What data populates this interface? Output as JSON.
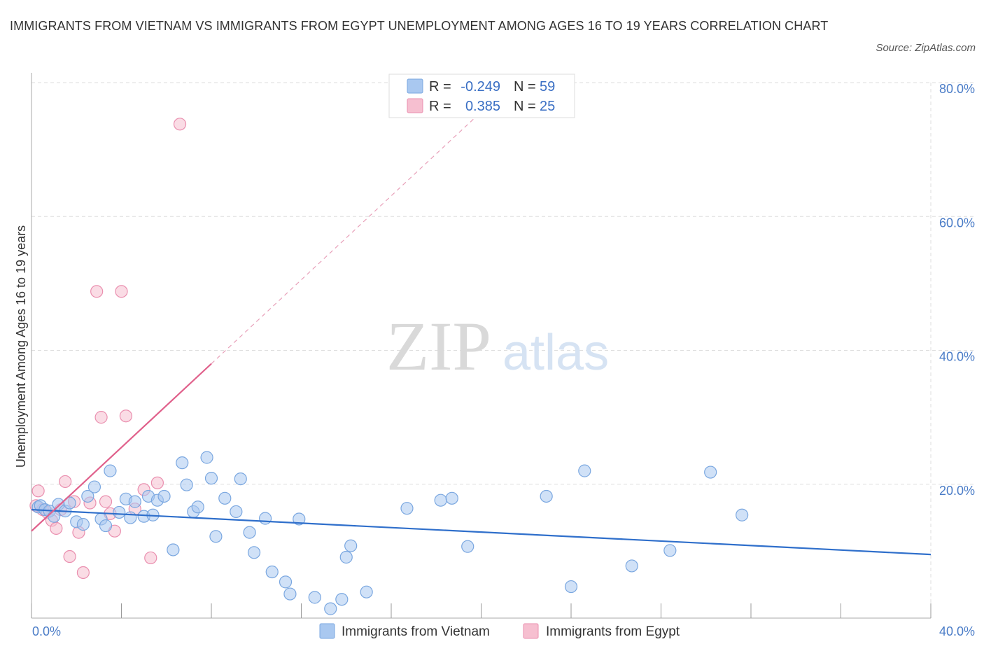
{
  "title": "IMMIGRANTS FROM VIETNAM VS IMMIGRANTS FROM EGYPT UNEMPLOYMENT AMONG AGES 16 TO 19 YEARS CORRELATION CHART",
  "source": "Source: ZipAtlas.com",
  "watermark": {
    "zip": "ZIP",
    "atlas": "atlas"
  },
  "colors": {
    "vietnam_fill": "#a9c8f0",
    "vietnam_stroke": "#7aa7e0",
    "vietnam_line": "#2f6fcb",
    "egypt_fill": "#f6bfd0",
    "egypt_stroke": "#ea8faf",
    "egypt_line": "#e0608b",
    "tick_label": "#4a7cc7",
    "grid": "#dddddd"
  },
  "legend": {
    "rows": [
      {
        "r_label": "R =",
        "r_value": "-0.249",
        "n_label": "N =",
        "n_value": "59"
      },
      {
        "r_label": "R =",
        "r_value": "0.385",
        "n_label": "N =",
        "n_value": "25"
      }
    ]
  },
  "chart_data": {
    "type": "scatter",
    "title": "IMMIGRANTS FROM VIETNAM VS IMMIGRANTS FROM EGYPT UNEMPLOYMENT AMONG AGES 16 TO 19 YEARS CORRELATION CHART",
    "xlabel": "",
    "ylabel": "Unemployment Among Ages 16 to 19 years",
    "xlim": [
      0,
      40
    ],
    "ylim": [
      0,
      80
    ],
    "x_tick_labels": [
      "0.0%",
      "40.0%"
    ],
    "y_ticks": [
      20,
      40,
      60,
      80
    ],
    "y_tick_labels": [
      "20.0%",
      "40.0%",
      "60.0%",
      "80.0%"
    ],
    "grid": true,
    "legend_position": "bottom-center",
    "series": [
      {
        "name": "Immigrants from Vietnam",
        "r": -0.249,
        "n": 59,
        "trend": {
          "x0": 0,
          "y0": 16.2,
          "x1": 40,
          "y1": 9.5,
          "dashed_to": null
        },
        "points": [
          [
            0.3,
            16.6
          ],
          [
            0.4,
            16.8
          ],
          [
            0.6,
            16.2
          ],
          [
            0.8,
            16.0
          ],
          [
            1.0,
            15.2
          ],
          [
            1.2,
            17.0
          ],
          [
            1.5,
            16.0
          ],
          [
            1.7,
            17.2
          ],
          [
            2.0,
            14.4
          ],
          [
            2.3,
            14.0
          ],
          [
            2.5,
            18.2
          ],
          [
            2.8,
            19.6
          ],
          [
            3.1,
            14.8
          ],
          [
            3.3,
            13.8
          ],
          [
            3.5,
            22.0
          ],
          [
            3.9,
            15.8
          ],
          [
            4.2,
            17.8
          ],
          [
            4.4,
            15.0
          ],
          [
            4.6,
            17.4
          ],
          [
            5.0,
            15.2
          ],
          [
            5.2,
            18.2
          ],
          [
            5.4,
            15.4
          ],
          [
            5.6,
            17.6
          ],
          [
            5.9,
            18.2
          ],
          [
            6.3,
            10.2
          ],
          [
            6.7,
            23.2
          ],
          [
            6.9,
            19.9
          ],
          [
            7.2,
            15.9
          ],
          [
            7.4,
            16.6
          ],
          [
            7.8,
            24.0
          ],
          [
            8.0,
            20.9
          ],
          [
            8.2,
            12.2
          ],
          [
            8.6,
            17.9
          ],
          [
            9.1,
            15.9
          ],
          [
            9.3,
            20.8
          ],
          [
            9.7,
            12.8
          ],
          [
            9.9,
            9.8
          ],
          [
            10.4,
            14.9
          ],
          [
            10.7,
            6.9
          ],
          [
            11.3,
            5.4
          ],
          [
            11.5,
            3.6
          ],
          [
            11.9,
            14.8
          ],
          [
            12.6,
            3.1
          ],
          [
            13.3,
            1.4
          ],
          [
            13.8,
            2.8
          ],
          [
            14.0,
            9.1
          ],
          [
            14.2,
            10.8
          ],
          [
            14.9,
            3.9
          ],
          [
            16.7,
            16.4
          ],
          [
            18.2,
            17.6
          ],
          [
            18.7,
            17.9
          ],
          [
            19.4,
            10.7
          ],
          [
            22.9,
            18.2
          ],
          [
            24.0,
            4.7
          ],
          [
            24.6,
            22.0
          ],
          [
            26.7,
            7.8
          ],
          [
            28.4,
            10.1
          ],
          [
            30.2,
            21.8
          ],
          [
            31.6,
            15.4
          ]
        ]
      },
      {
        "name": "Immigrants from Egypt",
        "r": 0.385,
        "n": 25,
        "trend": {
          "x0": 0,
          "y0": 13.0,
          "x1": 8.0,
          "y1": 38.0,
          "dashed_to": [
            20.6,
            77.5
          ]
        },
        "points": [
          [
            0.2,
            16.8
          ],
          [
            0.3,
            19.0
          ],
          [
            0.5,
            16.2
          ],
          [
            0.7,
            15.8
          ],
          [
            0.9,
            14.6
          ],
          [
            1.1,
            13.4
          ],
          [
            1.3,
            16.2
          ],
          [
            1.5,
            20.4
          ],
          [
            1.7,
            9.2
          ],
          [
            1.9,
            17.4
          ],
          [
            2.1,
            12.8
          ],
          [
            2.3,
            6.8
          ],
          [
            2.6,
            17.2
          ],
          [
            2.9,
            48.8
          ],
          [
            3.1,
            30.0
          ],
          [
            3.3,
            17.4
          ],
          [
            3.5,
            15.6
          ],
          [
            3.7,
            13.0
          ],
          [
            4.0,
            48.8
          ],
          [
            4.2,
            30.2
          ],
          [
            4.6,
            16.3
          ],
          [
            5.0,
            19.2
          ],
          [
            5.3,
            9.0
          ],
          [
            5.6,
            20.2
          ],
          [
            6.6,
            73.8
          ]
        ]
      }
    ]
  },
  "bottom_legend": {
    "vietnam_label": "Immigrants from Vietnam",
    "egypt_label": "Immigrants from Egypt"
  }
}
